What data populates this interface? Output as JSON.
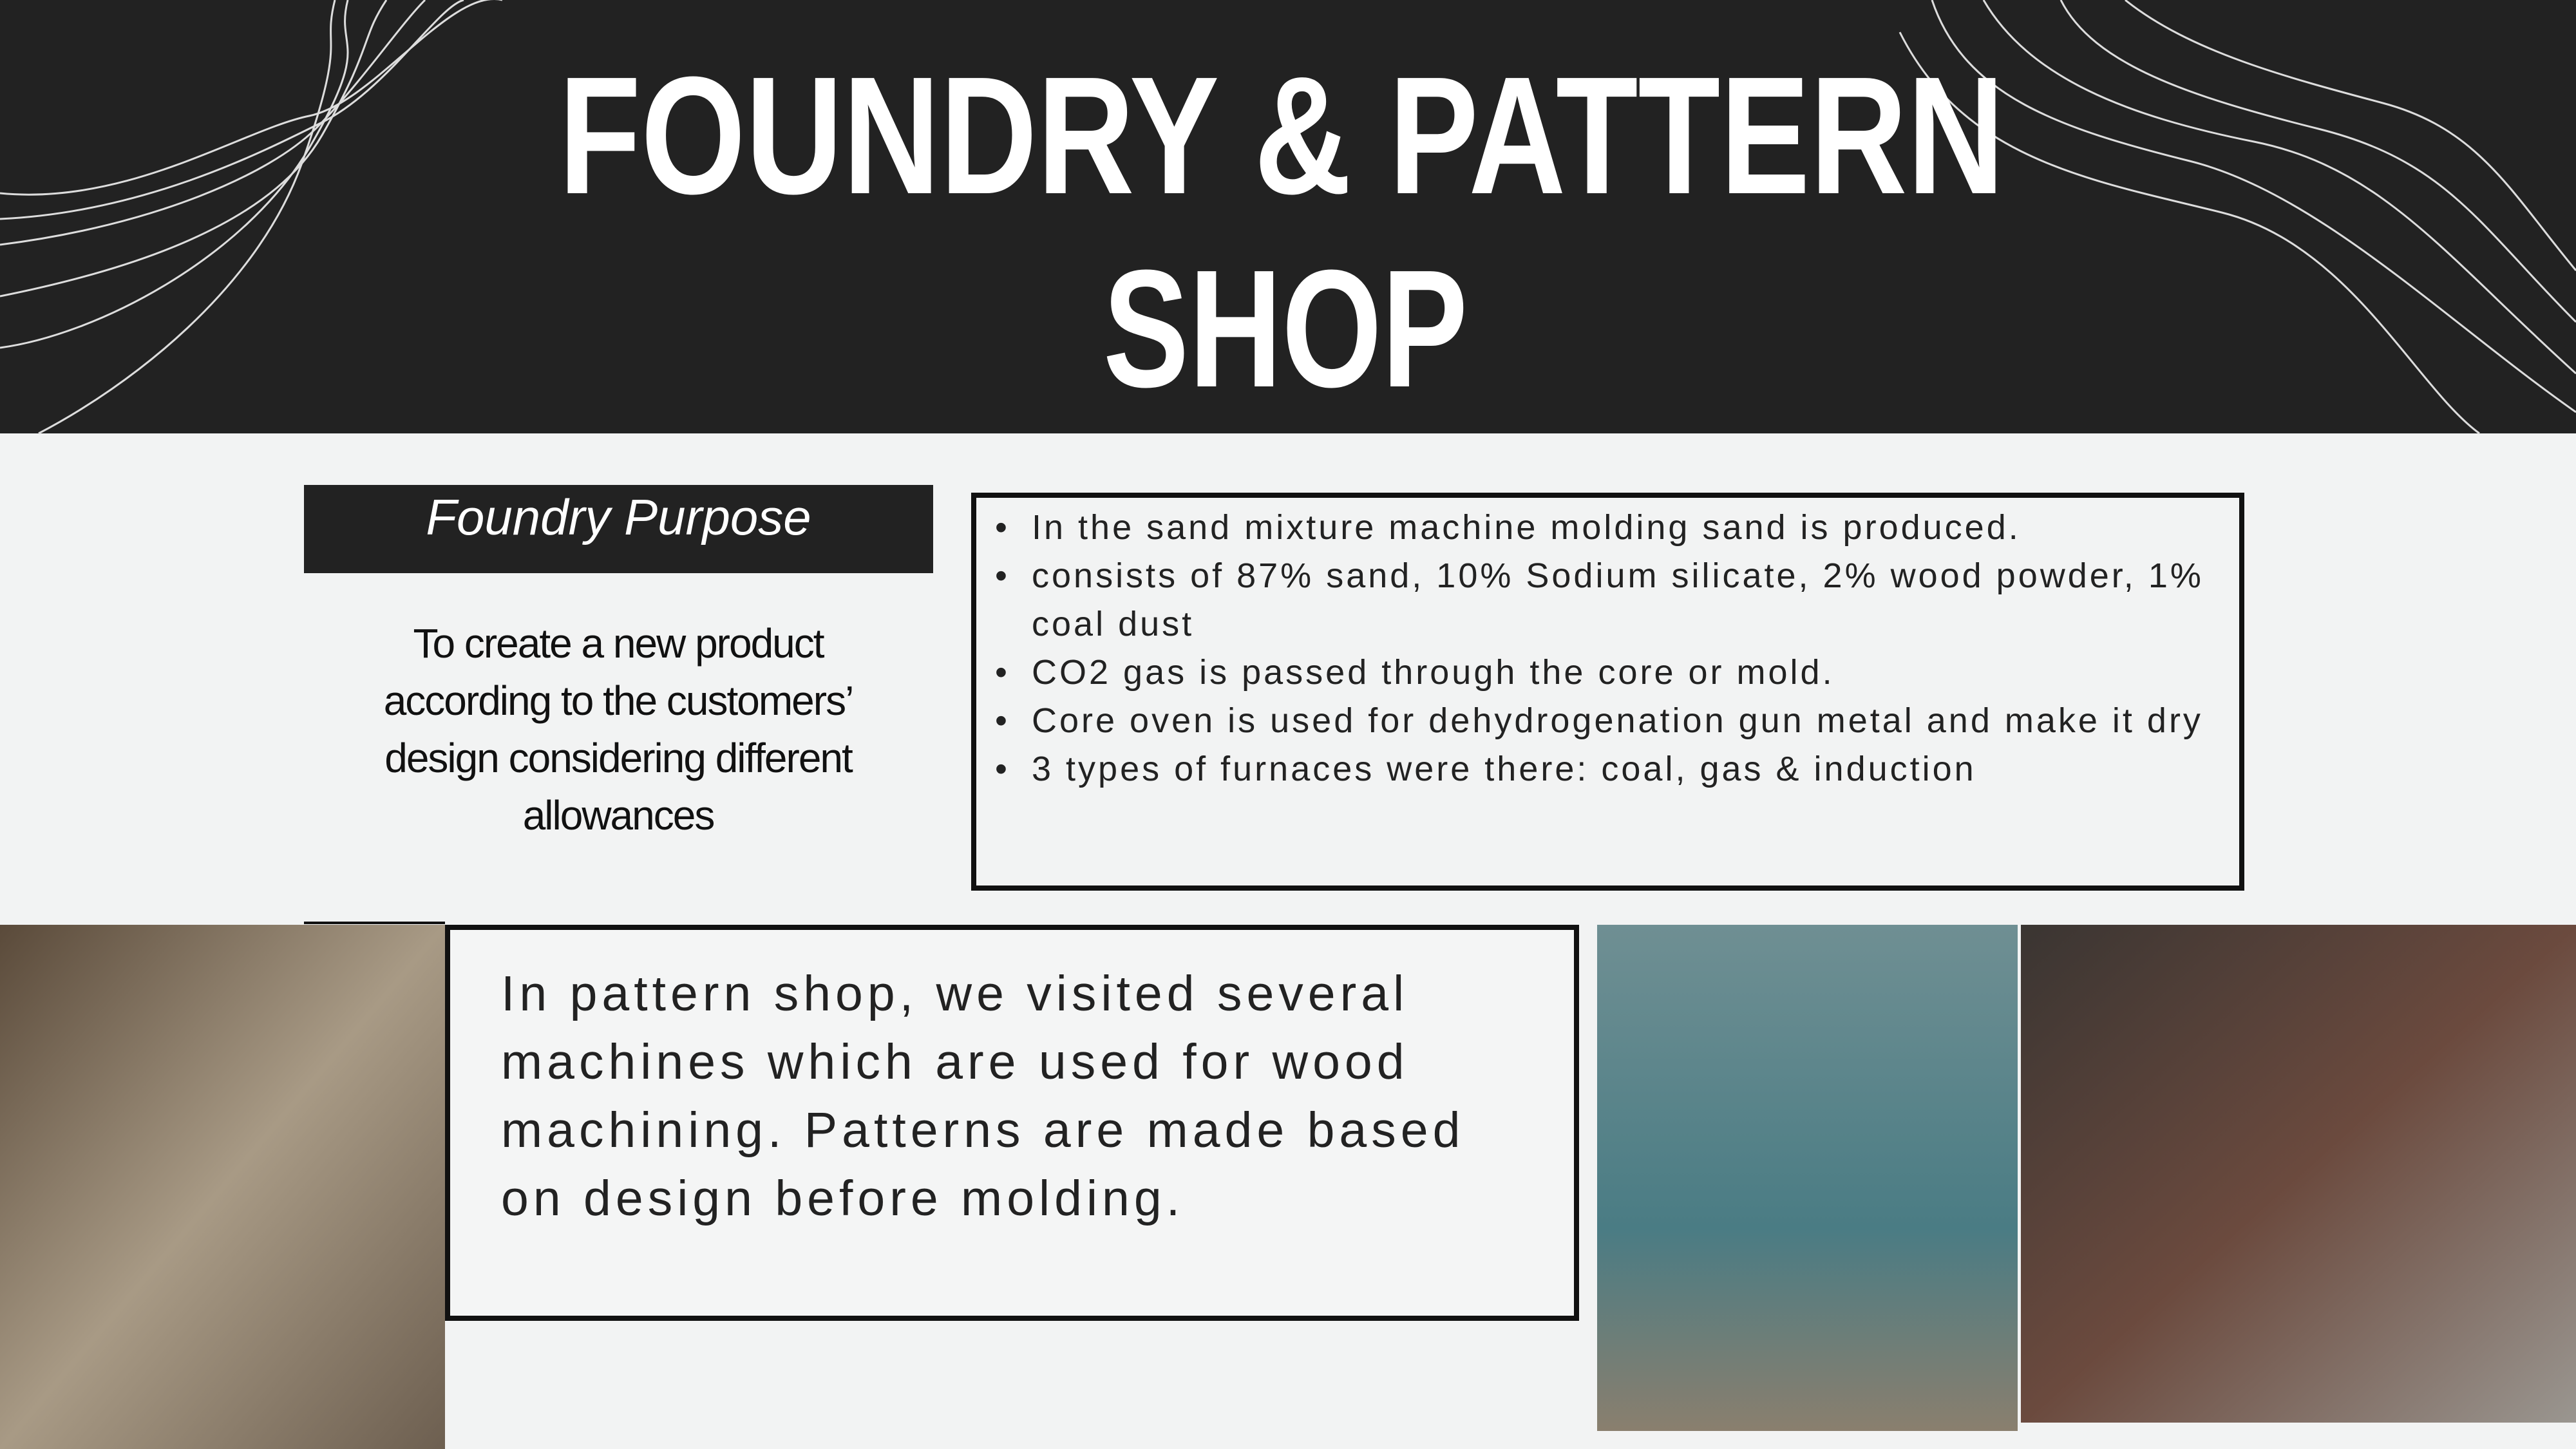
{
  "header": {
    "title_lines": [
      "FOUNDRY & PATTERN",
      "SHOP"
    ]
  },
  "purpose": {
    "label": "Foundry Purpose",
    "text": "To create a new product according to the customers’ design considering different allowances"
  },
  "bullets": [
    "In the sand mixture machine molding sand is produced.",
    "consists of 87% sand, 10% Sodium silicate, 2% wood powder, 1% coal dust",
    "CO2 gas is passed through the core or mold.",
    "Core oven is used for dehydrogenation gun metal and make it dry",
    "3 types of furnaces were there: coal, gas & induction"
  ],
  "pattern": {
    "text": "In pattern shop, we visited several machines which are used for wood machining. Patterns are made based on design before molding."
  }
}
